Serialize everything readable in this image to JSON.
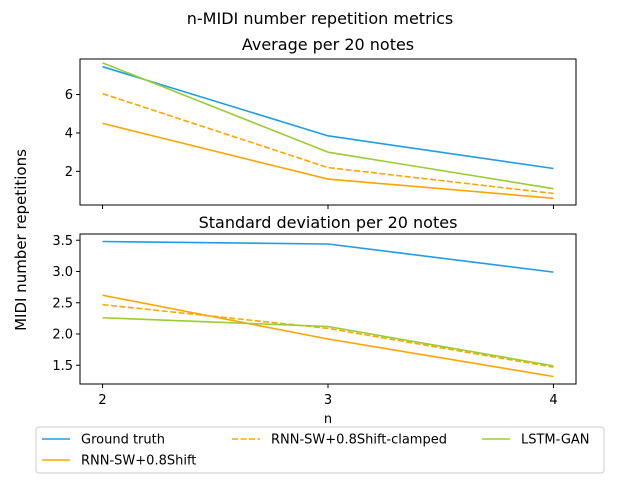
{
  "figure": {
    "suptitle": "n-MIDI number repetition metrics",
    "shared_ylabel": "MIDI number repetitions",
    "shared_xlabel": "n",
    "legend_placement": "bottom-center, below axes"
  },
  "chart_data": [
    {
      "type": "line",
      "title": "Average per 20 notes",
      "x": [
        2,
        3,
        4
      ],
      "xlim": [
        1.9,
        4.1
      ],
      "ylim": [
        0.25,
        7.85
      ],
      "yticks": [
        2,
        4,
        6
      ],
      "show_xticklabels": false,
      "grid": false,
      "series": [
        {
          "name": "Ground truth",
          "color": "#1f9de6",
          "dash": "solid",
          "values": [
            7.45,
            3.85,
            2.15
          ]
        },
        {
          "name": "RNN-SW+0.8Shift",
          "color": "#ffa500",
          "dash": "solid",
          "values": [
            4.5,
            1.6,
            0.6
          ]
        },
        {
          "name": "RNN-SW+0.8Shift-clamped",
          "color": "#ffa500",
          "dash": "dashed",
          "values": [
            6.05,
            2.2,
            0.85
          ]
        },
        {
          "name": "LSTM-GAN",
          "color": "#9acd32",
          "dash": "solid",
          "values": [
            7.65,
            3.0,
            1.1
          ]
        }
      ]
    },
    {
      "type": "line",
      "title": "Standard deviation per 20 notes",
      "x": [
        2,
        3,
        4
      ],
      "xticks": [
        2,
        3,
        4
      ],
      "xlim": [
        1.9,
        4.1
      ],
      "ylim": [
        1.2,
        3.6
      ],
      "yticks": [
        1.5,
        2.0,
        2.5,
        3.0,
        3.5
      ],
      "show_xticklabels": true,
      "grid": false,
      "series": [
        {
          "name": "Ground truth",
          "color": "#1f9de6",
          "dash": "solid",
          "values": [
            3.48,
            3.44,
            2.99
          ]
        },
        {
          "name": "RNN-SW+0.8Shift",
          "color": "#ffa500",
          "dash": "solid",
          "values": [
            2.62,
            1.92,
            1.32
          ]
        },
        {
          "name": "RNN-SW+0.8Shift-clamped",
          "color": "#ffa500",
          "dash": "dashed",
          "values": [
            2.47,
            2.09,
            1.47
          ]
        },
        {
          "name": "LSTM-GAN",
          "color": "#9acd32",
          "dash": "solid",
          "values": [
            2.26,
            2.12,
            1.49
          ]
        }
      ]
    }
  ]
}
